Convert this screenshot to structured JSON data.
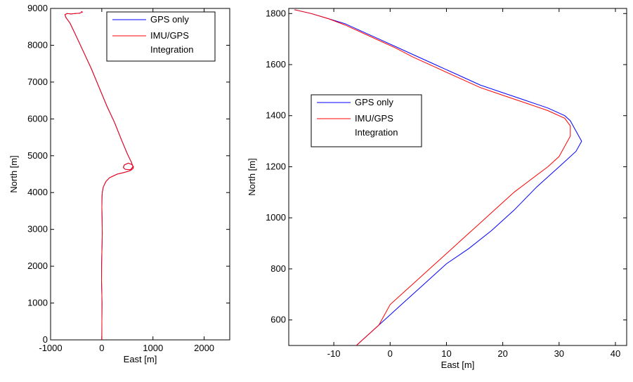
{
  "chart_data": [
    {
      "type": "line",
      "xlabel": "East [m]",
      "ylabel": "North [m]",
      "xlim": [
        -1000,
        2500
      ],
      "ylim": [
        0,
        9000
      ],
      "xticks": [
        -1000,
        0,
        1000,
        2000
      ],
      "yticks": [
        0,
        1000,
        2000,
        3000,
        4000,
        5000,
        6000,
        7000,
        8000,
        9000
      ],
      "grid": false,
      "legend_position": "top-right",
      "series": [
        {
          "name": "GPS only",
          "color": "#0000ff",
          "x": [
            0,
            2,
            5,
            0,
            -5,
            -3,
            0,
            6,
            10,
            6,
            2,
            5,
            8,
            10,
            30,
            80,
            150,
            300,
            450,
            560,
            610,
            620,
            590,
            520,
            440,
            420,
            460,
            560,
            610,
            580,
            500,
            380,
            250,
            100,
            -50,
            -200,
            -350,
            -500,
            -620,
            -700,
            -720,
            -680,
            -600,
            -520,
            -430,
            -380,
            -400
          ],
          "y": [
            0,
            500,
            1000,
            1300,
            1600,
            2000,
            2300,
            2600,
            2900,
            3300,
            3600,
            3900,
            3950,
            4000,
            4150,
            4300,
            4400,
            4500,
            4550,
            4600,
            4650,
            4700,
            4760,
            4800,
            4750,
            4680,
            4630,
            4620,
            4700,
            4820,
            5050,
            5450,
            5900,
            6350,
            6850,
            7350,
            7800,
            8250,
            8600,
            8750,
            8830,
            8860,
            8850,
            8860,
            8870,
            8900,
            8920
          ]
        },
        {
          "name": "IMU/GPS Integration",
          "color": "#ff0000",
          "x": [
            0,
            2,
            5,
            0,
            -5,
            -3,
            0,
            6,
            10,
            6,
            2,
            5,
            8,
            10,
            30,
            80,
            150,
            300,
            450,
            560,
            610,
            620,
            590,
            520,
            440,
            420,
            460,
            560,
            610,
            580,
            500,
            380,
            250,
            100,
            -50,
            -200,
            -350,
            -500,
            -620,
            -700,
            -720,
            -680,
            -600,
            -520,
            -430,
            -380,
            -400
          ],
          "y": [
            0,
            500,
            1000,
            1300,
            1600,
            2000,
            2300,
            2600,
            2900,
            3300,
            3600,
            3900,
            3950,
            4000,
            4150,
            4300,
            4400,
            4500,
            4550,
            4600,
            4650,
            4700,
            4760,
            4800,
            4750,
            4680,
            4630,
            4620,
            4700,
            4820,
            5050,
            5450,
            5900,
            6350,
            6850,
            7350,
            7800,
            8250,
            8600,
            8750,
            8830,
            8860,
            8850,
            8860,
            8870,
            8900,
            8920
          ]
        }
      ]
    },
    {
      "type": "line",
      "xlabel": "East [m]",
      "ylabel": "North [m]",
      "xlim": [
        -18,
        42
      ],
      "ylim": [
        500,
        1820
      ],
      "xticks": [
        -10,
        0,
        10,
        20,
        30,
        40
      ],
      "yticks": [
        600,
        800,
        1000,
        1200,
        1400,
        1600,
        1800
      ],
      "grid": false,
      "legend_position": "center-left",
      "series": [
        {
          "name": "GPS only",
          "color": "#0000ff",
          "x": [
            -6,
            -4,
            -2,
            0,
            2,
            4,
            7,
            10,
            14,
            18,
            22,
            26,
            29,
            31,
            33,
            34,
            33,
            32,
            31,
            28,
            24,
            20,
            16,
            12,
            8,
            4,
            1,
            -2,
            -5,
            -8,
            -11,
            -14,
            -17
          ],
          "y": [
            500,
            540,
            580,
            620,
            660,
            700,
            760,
            820,
            880,
            950,
            1030,
            1120,
            1180,
            1220,
            1260,
            1300,
            1340,
            1380,
            1400,
            1430,
            1460,
            1490,
            1520,
            1560,
            1600,
            1640,
            1670,
            1700,
            1730,
            1760,
            1780,
            1800,
            1815
          ]
        },
        {
          "name": "IMU/GPS Integration",
          "color": "#ff0000",
          "x": [
            -6,
            -4,
            -2,
            -1,
            0,
            2,
            4,
            7,
            10,
            13,
            16,
            19,
            22,
            25,
            28,
            30,
            31,
            32,
            32,
            31,
            28,
            24,
            20,
            16,
            12,
            8,
            4,
            1,
            -2,
            -5,
            -8,
            -11,
            -14,
            -17
          ],
          "y": [
            500,
            540,
            580,
            620,
            660,
            700,
            740,
            800,
            860,
            920,
            980,
            1040,
            1100,
            1150,
            1200,
            1240,
            1280,
            1320,
            1360,
            1390,
            1420,
            1450,
            1480,
            1510,
            1550,
            1590,
            1630,
            1665,
            1695,
            1725,
            1755,
            1780,
            1800,
            1815
          ]
        }
      ]
    }
  ]
}
